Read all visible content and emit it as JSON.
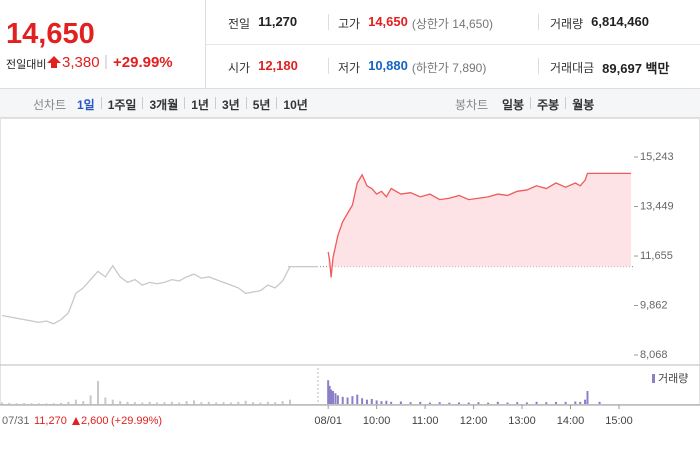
{
  "quote": {
    "price": "14,650",
    "change_label": "전일대비",
    "change": "3,380",
    "rate": "+29.99%"
  },
  "stats": [
    {
      "label": "전일",
      "value": "11,270"
    },
    {
      "label": "고가",
      "value": "14,650",
      "note": "(상한가 14,650)"
    },
    {
      "label": "거래량",
      "value": "6,814,460"
    },
    {
      "label": "시가",
      "value": "12,180"
    },
    {
      "label": "저가",
      "value": "10,880",
      "note": "(하한가 7,890)"
    },
    {
      "label": "거래대금",
      "value": "89,697 백만"
    }
  ],
  "line_tabs": {
    "label": "선차트",
    "items": [
      "1일",
      "1주일",
      "3개월",
      "1년",
      "3년",
      "5년",
      "10년"
    ],
    "active": 0
  },
  "candle_tabs": {
    "label": "봉차트",
    "items": [
      "일봉",
      "주봉",
      "월봉"
    ]
  },
  "chart_data": {
    "type": "line",
    "ylim": [
      7706,
      16403
    ],
    "yticks": [
      {
        "value": 15243,
        "label": "15,243"
      },
      {
        "value": 13449,
        "label": "13,449"
      },
      {
        "value": 11655,
        "label": "11,655"
      },
      {
        "value": 9862,
        "label": "9,862"
      },
      {
        "value": 8068,
        "label": "8,068"
      }
    ],
    "xlim": [
      8.79,
      15.31
    ],
    "xticks": [
      {
        "value": 9,
        "label": "08/01"
      },
      {
        "value": 10,
        "label": "10:00"
      },
      {
        "value": 11,
        "label": "11:00"
      },
      {
        "value": 12,
        "label": "12:00"
      },
      {
        "value": 13,
        "label": "13:00"
      },
      {
        "value": 14,
        "label": "14:00"
      },
      {
        "value": 15,
        "label": "15:00"
      }
    ],
    "base": 11270,
    "prev_day": {
      "label": "07/31",
      "close": "11,270",
      "change": "2,600",
      "rate": "(+29.99%)",
      "color": "#c8c8c8",
      "values": [
        9500,
        9450,
        9400,
        9350,
        9300,
        9250,
        9300,
        9200,
        9350,
        9600,
        10300,
        10500,
        10800,
        11100,
        10900,
        11300,
        10900,
        10700,
        10800,
        10600,
        10700,
        10650,
        10700,
        10800,
        10750,
        10900,
        11000,
        10850,
        10900,
        10800,
        10700,
        10600,
        10500,
        10300,
        10350,
        10400,
        10600,
        10500,
        10750,
        11270
      ],
      "volume": [
        20000,
        15000,
        10000,
        12000,
        10000,
        9000,
        8000,
        10000,
        15000,
        30000,
        60000,
        40000,
        120000,
        320000,
        90000,
        60000,
        40000,
        30000,
        25000,
        20000,
        30000,
        20000,
        25000,
        30000,
        20000,
        40000,
        50000,
        25000,
        30000,
        20000,
        25000,
        20000,
        30000,
        45000,
        25000,
        20000,
        30000,
        25000,
        40000,
        60000
      ]
    },
    "series": [
      {
        "color": "#f05a5a",
        "fill": "#fde3e5",
        "x": [
          9.0,
          9.03,
          9.06,
          9.1,
          9.15,
          9.2,
          9.3,
          9.4,
          9.5,
          9.6,
          9.7,
          9.8,
          9.9,
          10.0,
          10.1,
          10.2,
          10.3,
          10.5,
          10.7,
          10.9,
          11.1,
          11.3,
          11.5,
          11.7,
          11.9,
          12.1,
          12.3,
          12.5,
          12.7,
          12.9,
          13.1,
          13.3,
          13.5,
          13.7,
          13.9,
          14.1,
          14.2,
          14.3,
          14.35,
          14.6,
          15.0,
          15.25
        ],
        "values": [
          11800,
          11500,
          10880,
          11600,
          12000,
          12400,
          12900,
          13200,
          13500,
          14300,
          14600,
          14200,
          14100,
          13900,
          14000,
          13800,
          14100,
          13900,
          13950,
          13800,
          13900,
          13700,
          13750,
          13850,
          13700,
          13750,
          13800,
          13900,
          13850,
          14000,
          14050,
          14200,
          14100,
          14300,
          14150,
          14300,
          14200,
          14400,
          14650,
          14650,
          14650,
          14650
        ],
        "volume_color": "#8a7fc8",
        "volume": [
          330000,
          250000,
          200000,
          180000,
          150000,
          120000,
          100000,
          90000,
          110000,
          130000,
          80000,
          60000,
          70000,
          50000,
          40000,
          45000,
          30000,
          35000,
          25000,
          30000,
          20000,
          25000,
          18000,
          22000,
          20000,
          25000,
          18000,
          30000,
          20000,
          25000,
          22000,
          30000,
          25000,
          28000,
          30000,
          35000,
          30000,
          60000,
          180000,
          30000,
          0,
          0
        ]
      }
    ],
    "volume_ylim": [
      0,
      500000
    ],
    "volume_legend": "거래량"
  }
}
